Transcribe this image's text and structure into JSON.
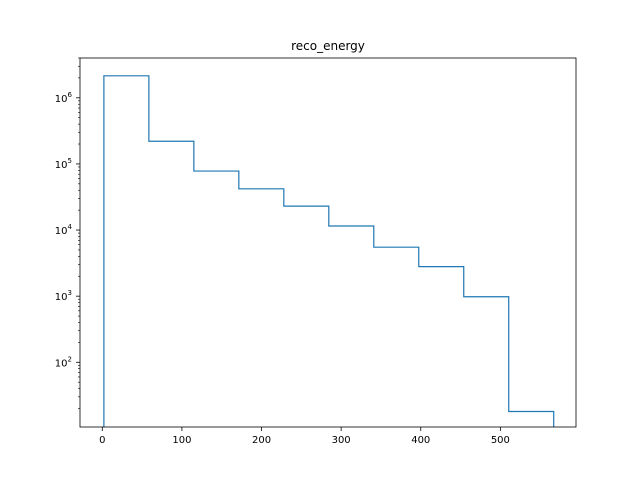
{
  "chart_data": {
    "type": "histogram",
    "title": "reco_energy",
    "xlabel": "",
    "ylabel": "",
    "yscale": "log",
    "xlim": [
      -28,
      595
    ],
    "ylim": [
      10.5,
      4000000
    ],
    "grid": false,
    "histtype": "step",
    "line_color": "#1f77b4",
    "bin_edges": [
      2,
      58.5,
      115,
      171.5,
      228,
      284.5,
      341,
      397.5,
      454,
      510.5,
      567
    ],
    "counts": [
      2150000,
      220000,
      78000,
      42000,
      23000,
      11500,
      5500,
      2800,
      980,
      18
    ],
    "x_ticks": [
      {
        "value": 0,
        "label": "0"
      },
      {
        "value": 100,
        "label": "100"
      },
      {
        "value": 200,
        "label": "200"
      },
      {
        "value": 300,
        "label": "300"
      },
      {
        "value": 400,
        "label": "400"
      },
      {
        "value": 500,
        "label": "500"
      }
    ],
    "y_ticks": [
      {
        "value": 100,
        "base": "10",
        "exp": "2"
      },
      {
        "value": 1000,
        "base": "10",
        "exp": "3"
      },
      {
        "value": 10000,
        "base": "10",
        "exp": "4"
      },
      {
        "value": 100000,
        "base": "10",
        "exp": "5"
      },
      {
        "value": 1000000,
        "base": "10",
        "exp": "6"
      }
    ]
  }
}
